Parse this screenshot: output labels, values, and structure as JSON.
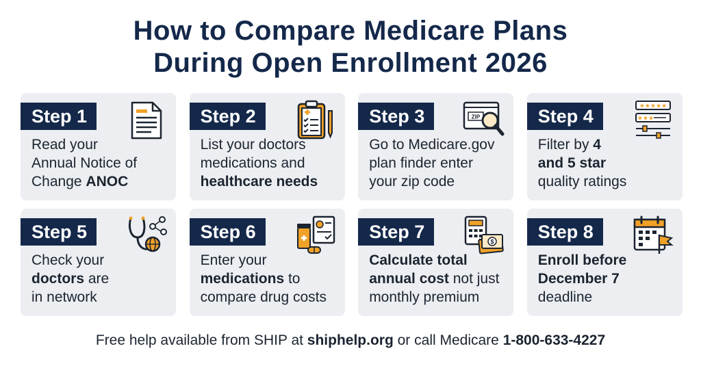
{
  "title": {
    "line1": "How to Compare Medicare Plans",
    "line2": "During Open Enrollment 2026"
  },
  "colors": {
    "navy": "#14284a",
    "card_bg": "#eceef1",
    "icon_orange": "#f0a128"
  },
  "steps": [
    {
      "label": "Step 1",
      "icon": "document-icon",
      "lines": [
        [
          {
            "t": "Read your",
            "b": false
          }
        ],
        [
          {
            "t": "Annual Notice of",
            "b": false
          }
        ],
        [
          {
            "t": "Change ",
            "b": false
          },
          {
            "t": "ANOC",
            "b": true
          }
        ]
      ]
    },
    {
      "label": "Step 2",
      "icon": "clipboard-checklist-icon",
      "lines": [
        [
          {
            "t": "List your doctors",
            "b": false
          }
        ],
        [
          {
            "t": "medications and",
            "b": false
          }
        ],
        [
          {
            "t": "healthcare needs",
            "b": true
          }
        ]
      ]
    },
    {
      "label": "Step 3",
      "icon": "zip-search-icon",
      "lines": [
        [
          {
            "t": "Go to Medicare.gov",
            "b": false
          }
        ],
        [
          {
            "t": "plan finder enter",
            "b": false
          }
        ],
        [
          {
            "t": "your zip code",
            "b": false
          }
        ]
      ]
    },
    {
      "label": "Step 4",
      "icon": "star-rating-filter-icon",
      "lines": [
        [
          {
            "t": "Filter by ",
            "b": false
          },
          {
            "t": "4",
            "b": true
          }
        ],
        [
          {
            "t": "and 5 star",
            "b": true
          }
        ],
        [
          {
            "t": "quality ratings",
            "b": false
          }
        ]
      ]
    },
    {
      "label": "Step 5",
      "icon": "stethoscope-network-icon",
      "lines": [
        [
          {
            "t": "Check your",
            "b": false
          }
        ],
        [
          {
            "t": "doctors",
            "b": true
          },
          {
            "t": " are",
            "b": false
          }
        ],
        [
          {
            "t": "in network",
            "b": false
          }
        ]
      ]
    },
    {
      "label": "Step 6",
      "icon": "medication-chart-icon",
      "lines": [
        [
          {
            "t": "Enter your",
            "b": false
          }
        ],
        [
          {
            "t": "medications",
            "b": true
          },
          {
            "t": " to",
            "b": false
          }
        ],
        [
          {
            "t": "compare drug costs",
            "b": false
          }
        ]
      ]
    },
    {
      "label": "Step 7",
      "icon": "calculator-money-icon",
      "lines": [
        [
          {
            "t": "Calculate total",
            "b": true
          }
        ],
        [
          {
            "t": "annual cost",
            "b": true
          },
          {
            "t": " not just",
            "b": false
          }
        ],
        [
          {
            "t": "monthly premium",
            "b": false
          }
        ]
      ]
    },
    {
      "label": "Step 8",
      "icon": "calendar-flag-icon",
      "lines": [
        [
          {
            "t": "Enroll before",
            "b": true
          }
        ],
        [
          {
            "t": "December 7",
            "b": true
          }
        ],
        [
          {
            "t": "deadline",
            "b": false
          }
        ]
      ]
    }
  ],
  "footer": [
    {
      "t": "Free help available from SHIP at ",
      "b": false
    },
    {
      "t": "shiphelp.org",
      "b": true
    },
    {
      "t": " or call Medicare ",
      "b": false
    },
    {
      "t": "1-800-633-4227",
      "b": true
    }
  ]
}
